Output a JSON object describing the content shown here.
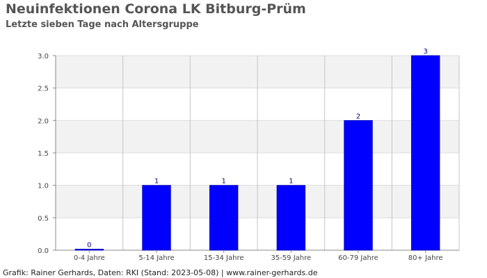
{
  "title": "Neuinfektionen Corona LK Bitburg-Prüm",
  "subtitle": "Letzte sieben Tage nach Altersgruppe",
  "footer": "Grafik: Rainer Gerhards, Daten: RKI (Stand: 2023-05-08) | www.rainer-gerhards.de",
  "chart_data": {
    "type": "bar",
    "title": "Neuinfektionen Corona LK Bitburg-Prüm",
    "subtitle": "Letzte sieben Tage nach Altersgruppe",
    "categories": [
      "0-4 Jahre",
      "5-14 Jahre",
      "15-34 Jahre",
      "35-59 Jahre",
      "60-79 Jahre",
      "80+ Jahre"
    ],
    "values": [
      0,
      1,
      1,
      1,
      2,
      3
    ],
    "data_labels": [
      "0",
      "1",
      "1",
      "1",
      "2",
      "3"
    ],
    "ylim": [
      0,
      3
    ],
    "yticks": [
      "0.0",
      "0.5",
      "1.0",
      "1.5",
      "2.0",
      "2.5",
      "3.0"
    ],
    "xlabel": "",
    "ylabel": "",
    "grid": true,
    "bar_color": "#0000ff",
    "label_color": "#000080",
    "band_color": "#f2f2f2"
  }
}
